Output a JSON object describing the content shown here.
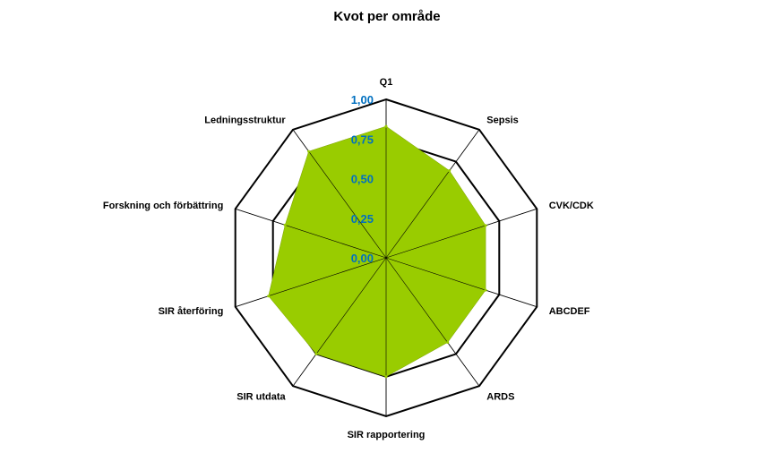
{
  "chart_data": {
    "type": "radar",
    "title": "Kvot per område",
    "categories": [
      "Q1",
      "Sepsis",
      "CVK/CDK",
      "ABCDEF",
      "ARDS",
      "SIR rapportering",
      "SIR utdata",
      "SIR återföring",
      "Forskning och förbättring",
      "Ledningsstruktur"
    ],
    "series": [
      {
        "values": [
          0.83,
          0.68,
          0.66,
          0.66,
          0.66,
          0.75,
          0.75,
          0.78,
          0.67,
          0.83
        ]
      }
    ],
    "rlim": [
      0,
      1
    ],
    "ticks": [
      0,
      0.25,
      0.5,
      0.75,
      1
    ],
    "tick_labels": [
      "0,00",
      "0,25",
      "0,50",
      "0,75",
      "1,00"
    ],
    "grid": true,
    "colors": {
      "fill": "#99CC00",
      "grid": "#000000",
      "tick_text": "#0070C0"
    }
  }
}
